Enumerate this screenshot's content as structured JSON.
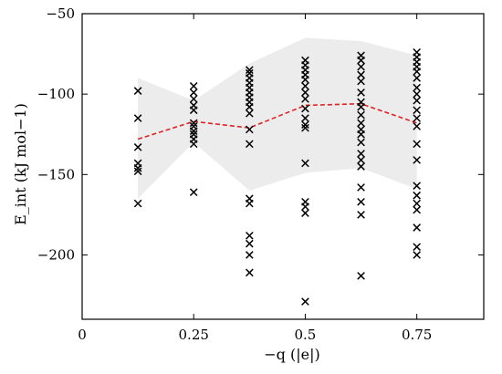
{
  "chart_data": {
    "type": "scatter",
    "xlabel": "−q   (|e|)",
    "ylabel": "E_int   (kJ mol−1)",
    "xlim": [
      0,
      0.9
    ],
    "ylim": [
      -240,
      -50
    ],
    "x_ticks": [
      0,
      0.25,
      0.5,
      0.75
    ],
    "x_tick_labels": [
      "0",
      "0.25",
      "0.5",
      "0.75"
    ],
    "y_ticks": [
      -200,
      -150,
      -100,
      -50
    ],
    "y_tick_labels": [
      "−200",
      "−150",
      "−100",
      "−50"
    ],
    "grid": false,
    "legend": "none",
    "colors": {
      "points": "#000000",
      "mean_line": "#dd2222",
      "band": "#ececec",
      "axes": "#000000"
    },
    "points": [
      {
        "x": 0.125,
        "y": [
          -98,
          -115,
          -133,
          -143,
          -146,
          -148,
          -168
        ]
      },
      {
        "x": 0.25,
        "y": [
          -95,
          -99,
          -103,
          -107,
          -110,
          -118,
          -120,
          -123,
          -125,
          -128,
          -131,
          -161
        ]
      },
      {
        "x": 0.375,
        "y": [
          -85,
          -87,
          -90,
          -93,
          -96,
          -99,
          -102,
          -105,
          -108,
          -112,
          -122,
          -131,
          -165,
          -168,
          -188,
          -193,
          -200,
          -211
        ]
      },
      {
        "x": 0.5,
        "y": [
          -79,
          -82,
          -85,
          -88,
          -91,
          -95,
          -99,
          -103,
          -109,
          -115,
          -119,
          -121,
          -143,
          -167,
          -170,
          -174,
          -229
        ]
      },
      {
        "x": 0.625,
        "y": [
          -76,
          -79,
          -83,
          -88,
          -92,
          -99,
          -105,
          -108,
          -113,
          -118,
          -122,
          -125,
          -130,
          -137,
          -141,
          -145,
          -158,
          -167,
          -175,
          -213
        ]
      },
      {
        "x": 0.75,
        "y": [
          -74,
          -77,
          -80,
          -83,
          -86,
          -90,
          -96,
          -100,
          -104,
          -110,
          -115,
          -120,
          -131,
          -141,
          -157,
          -163,
          -168,
          -172,
          -183,
          -195,
          -200
        ]
      }
    ],
    "mean_line": {
      "style": "dashed",
      "x": [
        0.125,
        0.25,
        0.375,
        0.5,
        0.625,
        0.75
      ],
      "y": [
        -128,
        -117,
        -121,
        -107,
        -106,
        -118
      ]
    },
    "band": {
      "x": [
        0.125,
        0.25,
        0.375,
        0.5,
        0.625,
        0.75
      ],
      "upper": [
        -90,
        -104,
        -81,
        -65,
        -67,
        -76
      ],
      "lower": [
        -165,
        -130,
        -160,
        -149,
        -146,
        -159
      ]
    }
  }
}
